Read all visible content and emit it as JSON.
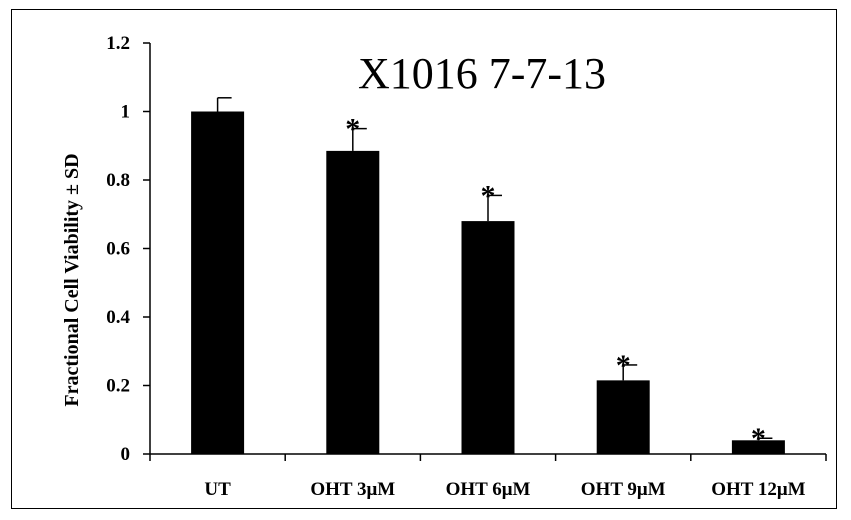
{
  "chart_data": {
    "type": "bar",
    "title": "X1016 7-7-13",
    "xlabel": "",
    "ylabel": "Fractional Cell Viability ± SD",
    "categories": [
      "UT",
      "OHT 3μM",
      "OHT 6μM",
      "OHT 9μM",
      "OHT 12μM"
    ],
    "values": [
      1.0,
      0.885,
      0.68,
      0.215,
      0.04
    ],
    "error_sd": [
      0.04,
      0.065,
      0.075,
      0.045,
      0.006
    ],
    "annotations": [
      "",
      "*",
      "*",
      "*",
      "*"
    ],
    "ylim": [
      0,
      1.2
    ],
    "yticks": [
      "0",
      "0.2",
      "0.4",
      "0.6",
      "0.8",
      "1",
      "1.2"
    ],
    "ytick_values": [
      0,
      0.2,
      0.4,
      0.6,
      0.8,
      1.0,
      1.2
    ],
    "grid": false,
    "legend": "none",
    "bar_color": "#000000"
  }
}
